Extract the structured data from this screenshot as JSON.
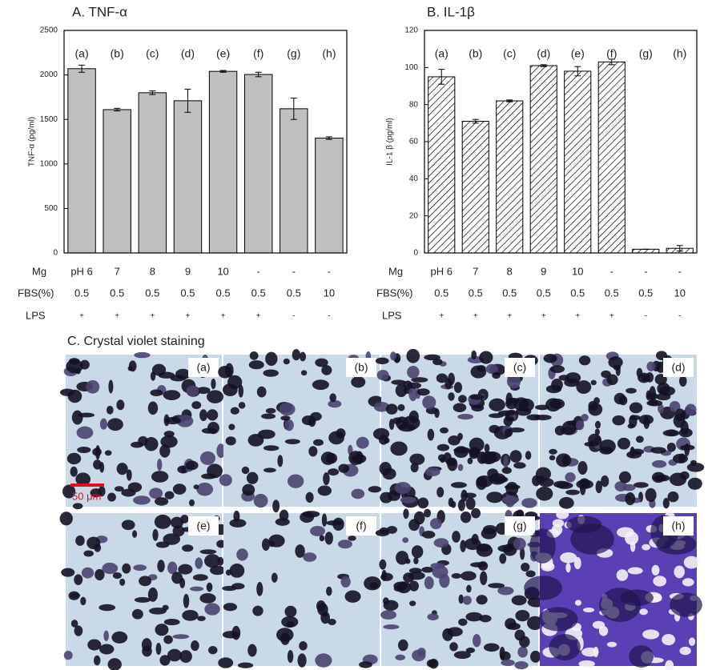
{
  "chart_data": [
    {
      "type": "bar",
      "title": "A. TNF-α",
      "y_label": "TNF-α (pg/ml)",
      "categories": [
        "(a)",
        "(b)",
        "(c)",
        "(d)",
        "(e)",
        "(f)",
        "(g)",
        "(h)"
      ],
      "values": [
        2070,
        1610,
        1800,
        1710,
        2040,
        2005,
        1620,
        1290
      ],
      "errors": [
        40,
        15,
        20,
        130,
        10,
        25,
        120,
        15
      ],
      "color": "#c0c0c0",
      "hatch": false,
      "ylim": [
        0,
        2500
      ],
      "yticks": [
        0,
        500,
        1000,
        1500,
        2000,
        2500
      ]
    },
    {
      "type": "bar",
      "title": "B. IL-1β",
      "y_label": "IL-1 β (pg/ml)",
      "categories": [
        "(a)",
        "(b)",
        "(c)",
        "(d)",
        "(e)",
        "(f)",
        "(g)",
        "(h)"
      ],
      "values": [
        95,
        71,
        82,
        101,
        98,
        103,
        2,
        2.5
      ],
      "errors": [
        4,
        1,
        0.5,
        0.5,
        2.5,
        1.5,
        0,
        1.5
      ],
      "color": "#ffffff",
      "hatch": true,
      "ylim": [
        0,
        120
      ],
      "yticks": [
        0,
        20,
        40,
        60,
        80,
        100,
        120
      ]
    }
  ],
  "conditions": {
    "rows": [
      {
        "label": "Mg",
        "cells": [
          "pH 6",
          "7",
          "8",
          "9",
          "10",
          "-",
          "-",
          "-"
        ]
      },
      {
        "label": "FBS(%)",
        "cells": [
          "0.5",
          "0.5",
          "0.5",
          "0.5",
          "0.5",
          "0.5",
          "0.5",
          "10"
        ]
      },
      {
        "label": "LPS",
        "cells": [
          "+",
          "+",
          "+",
          "+",
          "+",
          "+",
          "-",
          "-"
        ]
      }
    ]
  },
  "staining": {
    "title": "C. Crystal violet staining",
    "panels": [
      "(a)",
      "(b)",
      "(c)",
      "(d)",
      "(e)",
      "(f)",
      "(g)",
      "(h)"
    ],
    "scale_bar": "50 μm"
  }
}
